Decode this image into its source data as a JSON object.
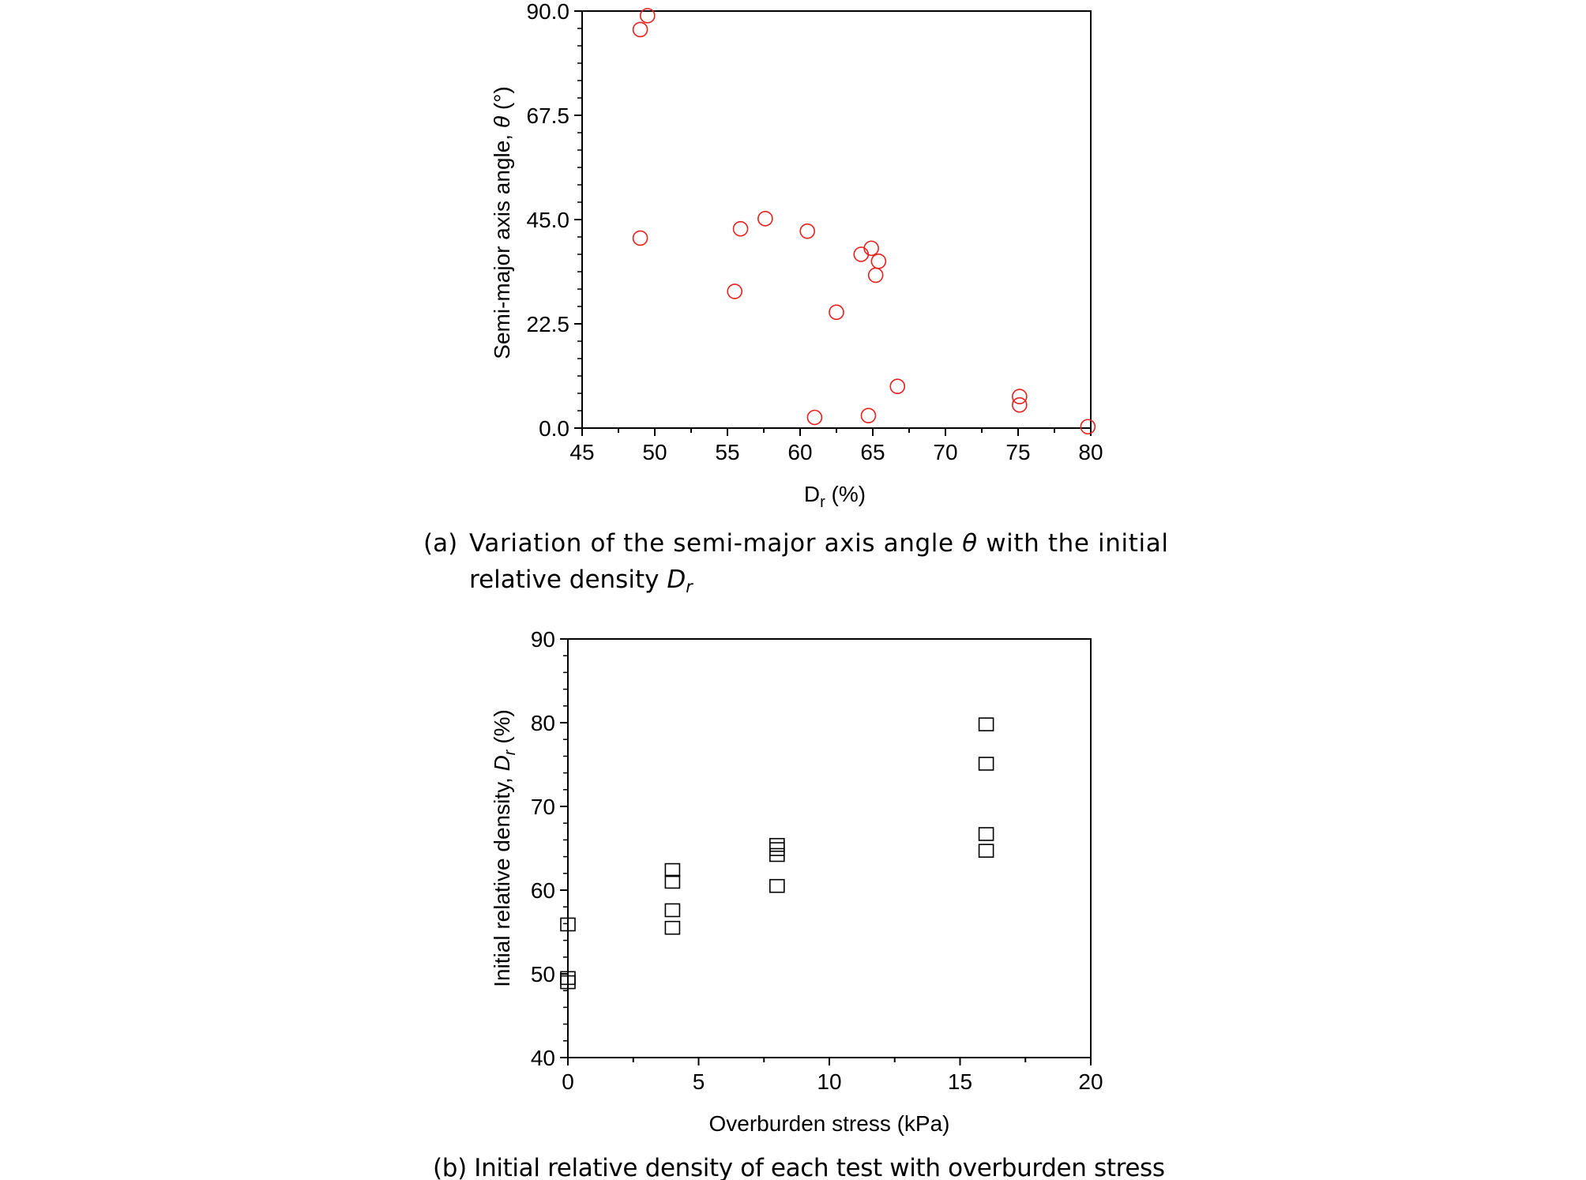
{
  "captions": {
    "a": {
      "label": "(a)",
      "line1": "Variation of the semi-major axis angle",
      "theta": "θ",
      "line1_end": "with the initial",
      "line2": "relative density",
      "dr": "D",
      "dr_sub": "r"
    },
    "b": {
      "label": "(b)",
      "line1": "Initial relative density of each test with overburden stress"
    }
  },
  "chart_data": [
    {
      "id": "a",
      "type": "scatter",
      "xlabel": {
        "main": "D",
        "sub": "r",
        "rest": " (%)"
      },
      "ylabel": {
        "main": "Semi-major axis angle, ",
        "ital": "θ",
        "rest": " (°)"
      },
      "xlim": [
        45,
        80
      ],
      "ylim": [
        0,
        90
      ],
      "xticks": [
        45,
        50,
        55,
        60,
        65,
        70,
        75,
        80
      ],
      "yticks": [
        "0.0",
        "22.5",
        "45.0",
        "67.5",
        "90.0"
      ],
      "marker": "circle",
      "color": "#e8201e",
      "grid": false,
      "points": [
        {
          "x": 49.0,
          "y": 86.0
        },
        {
          "x": 49.5,
          "y": 89.0
        },
        {
          "x": 49.0,
          "y": 41.0
        },
        {
          "x": 55.9,
          "y": 43.0
        },
        {
          "x": 57.6,
          "y": 45.2
        },
        {
          "x": 60.5,
          "y": 42.5
        },
        {
          "x": 64.2,
          "y": 37.5
        },
        {
          "x": 64.9,
          "y": 38.8
        },
        {
          "x": 65.4,
          "y": 36.0
        },
        {
          "x": 65.2,
          "y": 33.0
        },
        {
          "x": 55.5,
          "y": 29.5
        },
        {
          "x": 62.5,
          "y": 25.0
        },
        {
          "x": 66.7,
          "y": 9.0
        },
        {
          "x": 75.1,
          "y": 6.8
        },
        {
          "x": 75.1,
          "y": 5.0
        },
        {
          "x": 61.0,
          "y": 2.3
        },
        {
          "x": 64.7,
          "y": 2.7
        },
        {
          "x": 79.8,
          "y": 0.3
        }
      ]
    },
    {
      "id": "b",
      "type": "scatter",
      "xlabel": {
        "main": "Overburden stress (kPa)"
      },
      "ylabel": {
        "main": "Initial relative density, ",
        "ital": "D",
        "sub": "r",
        "rest": " (%)"
      },
      "xlim": [
        0,
        20
      ],
      "ylim": [
        40,
        90
      ],
      "xticks": [
        0,
        5,
        10,
        15,
        20
      ],
      "yticks": [
        40,
        50,
        60,
        70,
        80,
        90
      ],
      "marker": "square",
      "color": "#000000",
      "grid": false,
      "points": [
        {
          "x": 0,
          "y": 55.9
        },
        {
          "x": 0,
          "y": 49.5
        },
        {
          "x": 0,
          "y": 49.0
        },
        {
          "x": 4,
          "y": 62.4
        },
        {
          "x": 4,
          "y": 61.0
        },
        {
          "x": 4,
          "y": 57.6
        },
        {
          "x": 4,
          "y": 55.5
        },
        {
          "x": 8,
          "y": 65.4
        },
        {
          "x": 8,
          "y": 64.9
        },
        {
          "x": 8,
          "y": 64.2
        },
        {
          "x": 8,
          "y": 60.5
        },
        {
          "x": 16,
          "y": 79.8
        },
        {
          "x": 16,
          "y": 75.1
        },
        {
          "x": 16,
          "y": 66.7
        },
        {
          "x": 16,
          "y": 64.7
        }
      ]
    }
  ]
}
